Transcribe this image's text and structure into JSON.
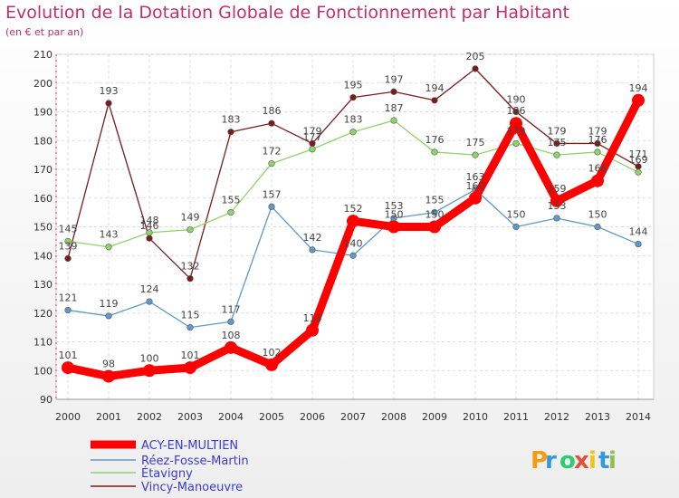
{
  "chart_data": {
    "type": "line",
    "title": "Evolution de la Dotation Globale de Fonctionnement par Habitant",
    "subtitle": "(en € et par an)",
    "x": [
      2000,
      2001,
      2002,
      2003,
      2004,
      2005,
      2006,
      2007,
      2008,
      2009,
      2010,
      2011,
      2012,
      2013,
      2014
    ],
    "ylim": [
      90,
      210
    ],
    "yticks": [
      90,
      100,
      110,
      120,
      130,
      140,
      150,
      160,
      170,
      180,
      190,
      200,
      210
    ],
    "grid": true,
    "legend_position": "bottom-left",
    "series": [
      {
        "name": "ACY-EN-MULTIEN",
        "color": "#ff0000",
        "values": [
          101,
          98,
          100,
          101,
          108,
          102,
          114,
          152,
          150,
          150,
          160,
          186,
          159,
          166,
          194
        ]
      },
      {
        "name": "Réez-Fosse-Martin",
        "color": "#5f99c9",
        "values": [
          121,
          119,
          124,
          115,
          117,
          157,
          142,
          140,
          153,
          155,
          163,
          150,
          153,
          150,
          144
        ]
      },
      {
        "name": "Étavigny",
        "color": "#8fd46a",
        "values": [
          145,
          143,
          148,
          149,
          155,
          172,
          177,
          183,
          187,
          176,
          175,
          179,
          175,
          176,
          169
        ]
      },
      {
        "name": "Vincy-Manoeuvre",
        "color": "#7a1c1c",
        "values": [
          139,
          193,
          146,
          132,
          183,
          186,
          179,
          195,
          197,
          194,
          205,
          190,
          179,
          179,
          171
        ]
      }
    ]
  },
  "brand": {
    "letters": [
      "P",
      "r",
      "o",
      "x",
      "i",
      "t",
      "i"
    ],
    "colors": [
      "#f39c12",
      "#3498db",
      "#2ecc71",
      "#e74c3c",
      "#f1c40f",
      "#3498db",
      "#8bc34a"
    ]
  }
}
